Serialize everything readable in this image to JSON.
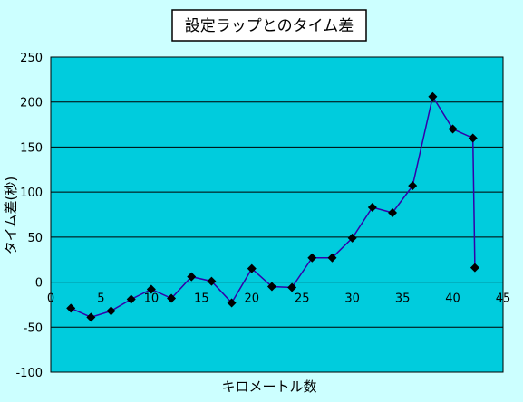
{
  "chart_data": {
    "type": "line",
    "title": "設定ラップとのタイム差",
    "xlabel": "キロメートル数",
    "ylabel": "タイム差(秒)",
    "xlim": [
      0,
      45
    ],
    "ylim": [
      -100,
      250
    ],
    "xticks": [
      0,
      5,
      10,
      15,
      20,
      25,
      30,
      35,
      40,
      45
    ],
    "yticks": [
      -100,
      -50,
      0,
      50,
      100,
      150,
      200,
      250
    ],
    "grid": "horizontal",
    "legend": "none",
    "colors": {
      "plot_bg": "#00ccdd",
      "line": "#3300aa",
      "marker": "#000000",
      "page_bg": "#ccffff"
    },
    "series": [
      {
        "x": [
          2,
          4,
          6,
          8,
          10,
          12,
          14,
          16,
          18,
          20,
          22,
          24,
          26,
          28,
          30,
          32,
          34,
          36,
          38,
          40,
          42,
          42.195
        ],
        "y": [
          -29,
          -39,
          -32,
          -19,
          -8,
          -18,
          6,
          1,
          -23,
          15,
          -5,
          -6,
          27,
          27,
          49,
          83,
          77,
          107,
          206,
          170,
          160,
          16
        ]
      }
    ]
  }
}
